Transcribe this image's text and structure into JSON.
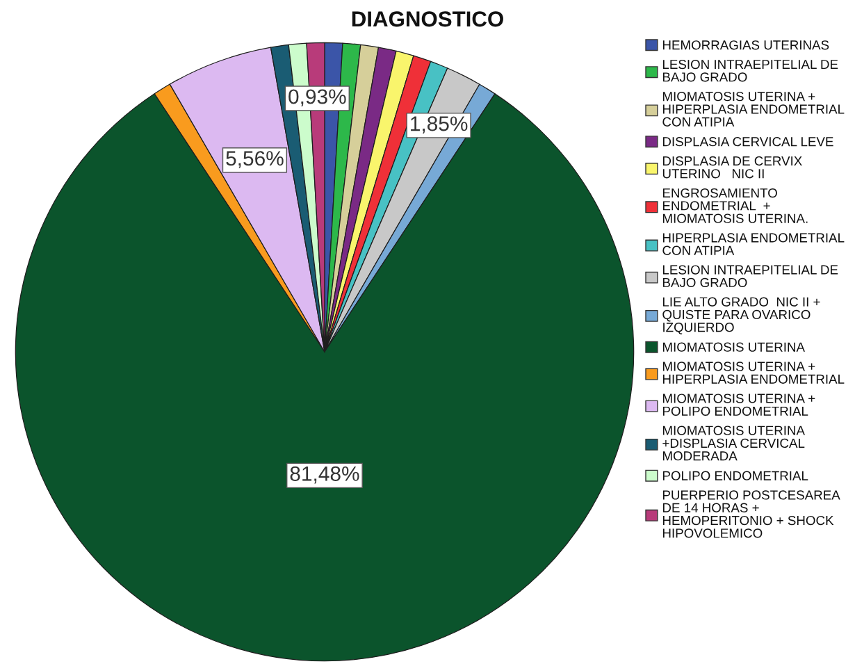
{
  "chart_data": {
    "type": "pie",
    "title": "DIAGNOSTICO",
    "categories": [
      "HEMORRAGIAS UTERINAS",
      "LESION INTRAEPITELIAL DE BAJO GRADO",
      "MIOMATOSIS UTERINA + HIPERPLASIA ENDOMETRIAL CON ATIPIA",
      "DISPLASIA CERVICAL LEVE",
      "DISPLASIA DE CERVIX UTERINO   NIC II",
      "ENGROSAMIENTO ENDOMETRIAL  + MIOMATOSIS UTERINA.",
      "HIPERPLASIA ENDOMETRIAL CON ATIPIA",
      "LESION INTRAEPITELIAL DE BAJO GRADO",
      "LIE ALTO GRADO  NIC II + QUISTE PARA OVARICO IZQUIERDO",
      "MIOMATOSIS UTERINA",
      "MIOMATOSIS UTERINA + HIPERPLASIA ENDOMETRIAL",
      "MIOMATOSIS UTERINA + POLIPO ENDOMETRIAL",
      "MIOMATOSIS UTERINA +DISPLASIA CERVICAL MODERADA",
      "POLIPO ENDOMETRIAL",
      "PUERPERIO POSTCESAREA DE 14 HORAS + HEMOPERITONIO + SHOCK HIPOVOLEMICO"
    ],
    "values": [
      0.93,
      0.93,
      0.93,
      0.93,
      0.93,
      0.93,
      0.93,
      1.85,
      0.93,
      81.48,
      0.93,
      5.56,
      0.93,
      0.93,
      0.93
    ],
    "colors": [
      "#3b55a8",
      "#2db84a",
      "#d6cf9a",
      "#7a2a85",
      "#f9f56c",
      "#ef3038",
      "#48c1c4",
      "#c8c8c8",
      "#77a9d6",
      "#0b542c",
      "#f99b1e",
      "#dcb9f1",
      "#1a5c73",
      "#ccfccc",
      "#b83b7a"
    ],
    "value_labels": [
      null,
      null,
      null,
      null,
      null,
      null,
      null,
      "1,85%",
      null,
      "81,48%",
      null,
      "5,56%",
      null,
      null,
      "0,93%"
    ],
    "legend": "right"
  }
}
